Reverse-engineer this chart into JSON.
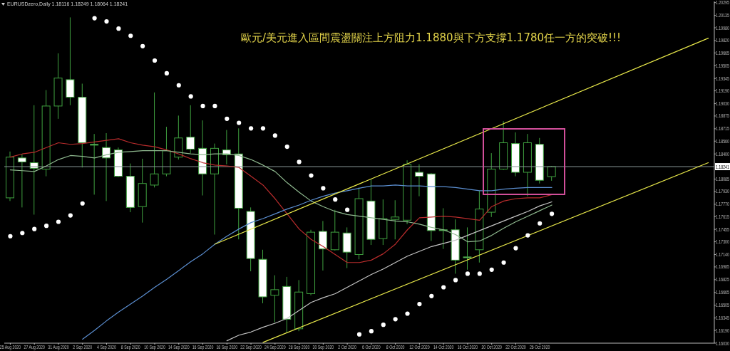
{
  "chart_data": {
    "type": "candlestick",
    "title": "EURUSDzero,Daily 1.18116 1.18249 1.18064 1.18241",
    "annotations": [
      "歐元/美元進入區間震盪關注上方阻力1.1880與下方支撐1.1780任一方的突破!!!"
    ],
    "categories": [
      "25 Aug 2020",
      null,
      "27 Aug 2020",
      null,
      "31 Aug 2020",
      null,
      "2 Sep 2020",
      null,
      "4 Sep 2020",
      null,
      "8 Sep 2020",
      null,
      "10 Sep 2020",
      null,
      "14 Sep 2020",
      null,
      "16 Sep 2020",
      null,
      "18 Sep 2020",
      null,
      "22 Sep 2020",
      null,
      "24 Sep 2020",
      null,
      "28 Sep 2020",
      null,
      "30 Sep 2020",
      null,
      "2 Oct 2020",
      null,
      "6 Oct 2020",
      null,
      "8 Oct 2020",
      null,
      "12 Oct 2020",
      null,
      "14 Oct 2020",
      null,
      "16 Oct 2020",
      null,
      "20 Oct 2020",
      null,
      "22 Oct 2020",
      null,
      "26 Oct 2020",
      null,
      null,
      null,
      null,
      null,
      null,
      null,
      null,
      null,
      null,
      null,
      null,
      null,
      null
    ],
    "ohlc": [
      [
        1.1785,
        1.1843,
        1.1781,
        1.1836
      ],
      [
        1.1835,
        1.184,
        1.1773,
        1.183
      ],
      [
        1.1829,
        1.1901,
        1.1764,
        1.1822
      ],
      [
        1.1821,
        1.192,
        1.1812,
        1.19
      ],
      [
        1.19,
        1.1966,
        1.1884,
        1.1935
      ],
      [
        1.1933,
        1.2011,
        1.1901,
        1.1911
      ],
      [
        1.1911,
        1.1928,
        1.1823,
        1.1854
      ],
      [
        1.1852,
        1.1865,
        1.1789,
        1.1851
      ],
      [
        1.1848,
        1.1866,
        1.1781,
        1.1835
      ],
      [
        1.1845,
        1.1848,
        1.1811,
        1.1812
      ],
      [
        1.1812,
        1.1828,
        1.1767,
        1.1773
      ],
      [
        1.1774,
        1.1834,
        1.1754,
        1.1803
      ],
      [
        1.1801,
        1.1917,
        1.1798,
        1.1815
      ],
      [
        1.1815,
        1.1874,
        1.1812,
        1.1844
      ],
      [
        1.1836,
        1.1888,
        1.1833,
        1.186
      ],
      [
        1.1861,
        1.1901,
        1.1841,
        1.1846
      ],
      [
        1.1847,
        1.1882,
        1.1788,
        1.1815
      ],
      [
        1.1815,
        1.1853,
        1.1739,
        1.1847
      ],
      [
        1.1845,
        1.187,
        1.1827,
        1.1839
      ],
      [
        1.184,
        1.1872,
        1.1733,
        1.1772
      ],
      [
        1.1768,
        1.1773,
        1.1693,
        1.1709
      ],
      [
        1.1708,
        1.172,
        1.1653,
        1.1661
      ],
      [
        1.1663,
        1.1688,
        1.1629,
        1.167
      ],
      [
        1.1674,
        1.1686,
        1.1616,
        1.1633
      ],
      [
        1.1621,
        1.1682,
        1.1618,
        1.1667
      ],
      [
        1.1665,
        1.1745,
        1.1663,
        1.1742
      ],
      [
        1.1743,
        1.1756,
        1.1694,
        1.1721
      ],
      [
        1.172,
        1.177,
        1.1719,
        1.1742
      ],
      [
        1.1741,
        1.1748,
        1.1697,
        1.1717
      ],
      [
        1.1714,
        1.1798,
        1.1708,
        1.1784
      ],
      [
        1.1781,
        1.1808,
        1.1726,
        1.1733
      ],
      [
        1.1734,
        1.1783,
        1.1726,
        1.1759
      ],
      [
        1.1758,
        1.1782,
        1.1733,
        1.1761
      ],
      [
        1.1757,
        1.1832,
        1.1752,
        1.1827
      ],
      [
        1.1817,
        1.1827,
        1.1787,
        1.1812
      ],
      [
        1.1815,
        1.1816,
        1.1731,
        1.1744
      ],
      [
        1.1745,
        1.1772,
        1.1721,
        1.1744
      ],
      [
        1.1745,
        1.1758,
        1.169,
        1.1707
      ],
      [
        1.1711,
        1.1748,
        1.1695,
        1.171
      ],
      [
        1.172,
        1.1794,
        1.1704,
        1.1771
      ],
      [
        1.1767,
        1.1841,
        1.1761,
        1.1821
      ],
      [
        1.1821,
        1.1881,
        1.182,
        1.1854
      ],
      [
        1.1853,
        1.1867,
        1.1812,
        1.1817
      ],
      [
        1.1817,
        1.1865,
        1.1787,
        1.1854
      ],
      [
        1.1852,
        1.186,
        1.1803,
        1.1807
      ],
      [
        1.18116,
        1.18249,
        1.18064,
        1.18241
      ],
      null,
      null,
      null,
      null,
      null,
      null,
      null,
      null,
      null,
      null,
      null,
      null,
      null
    ],
    "color": "#3fa03f",
    "colors": [
      "#000000",
      "#ffffff",
      "#ffffff",
      "#000000",
      "#000000",
      "#ffffff",
      "#ffffff",
      "#ffffff",
      "#ffffff",
      "#ffffff",
      "#ffffff",
      "#000000",
      "#000000",
      "#000000",
      "#000000",
      "#ffffff",
      "#ffffff",
      "#000000",
      "#ffffff",
      "#ffffff",
      "#ffffff",
      "#ffffff",
      "#000000",
      "#ffffff",
      "#000000",
      "#000000",
      "#ffffff",
      "#000000",
      "#ffffff",
      "#000000",
      "#ffffff",
      "#000000",
      "#000000",
      "#000000",
      "#ffffff",
      "#ffffff",
      "#ffffff",
      "#ffffff",
      "#ffffff",
      "#000000",
      "#000000",
      "#000000",
      "#ffffff",
      "#000000",
      "#ffffff",
      "#000000",
      null,
      null,
      null,
      null,
      null,
      null,
      null,
      null,
      null,
      null,
      null,
      null,
      null
    ],
    "series": [
      {
        "type": "line",
        "color": "#b82c2c",
        "values": [
          1.1836,
          1.184,
          1.1842,
          1.1848,
          1.1854,
          1.1852,
          1.1853,
          1.1855,
          1.1857,
          1.1859,
          1.1854,
          1.1851,
          1.1849,
          1.1845,
          1.184,
          1.1834,
          1.1829,
          1.1826,
          1.1825,
          1.1823,
          1.1812,
          1.1801,
          1.1784,
          1.1765,
          1.1746,
          1.1733,
          1.1724,
          1.1714,
          1.1704,
          1.1704,
          1.1707,
          1.1715,
          1.1727,
          1.1745,
          1.176,
          1.1761,
          1.1762,
          1.1761,
          1.1759,
          1.1757,
          1.1774,
          1.1781,
          1.1784,
          1.1785,
          1.1785,
          1.1789,
          null,
          null,
          null,
          null,
          null,
          null,
          null,
          null,
          null,
          null,
          null,
          null,
          null
        ]
      },
      {
        "type": "line",
        "color": "#8fb98f",
        "values": [
          1.182,
          1.1819,
          1.1818,
          1.1825,
          1.1833,
          1.1838,
          1.1837,
          1.1835,
          1.1839,
          1.1842,
          1.1843,
          1.1844,
          1.1844,
          1.1844,
          1.1842,
          1.184,
          1.1839,
          1.184,
          1.184,
          1.1838,
          1.1833,
          1.1826,
          1.1818,
          1.1804,
          1.1792,
          1.1781,
          1.1774,
          1.1768,
          1.1764,
          1.1762,
          1.176,
          1.1758,
          1.1756,
          1.1755,
          1.1752,
          1.1748,
          1.1745,
          1.1739,
          1.173,
          1.1731,
          1.1738,
          1.1747,
          1.1755,
          1.1762,
          1.1769,
          1.1776,
          null,
          null,
          null,
          null,
          null,
          null,
          null,
          null,
          null,
          null,
          null,
          null,
          null
        ]
      },
      {
        "type": "line",
        "color": "#5b8ed0",
        "values": [
          null,
          null,
          null,
          null,
          null,
          null,
          1.1608,
          1.1619,
          1.1631,
          1.1642,
          1.1652,
          1.1662,
          1.1673,
          1.1683,
          1.1694,
          1.1705,
          1.1715,
          1.1727,
          1.1737,
          1.1746,
          1.1754,
          1.1759,
          1.1765,
          1.1771,
          1.1776,
          1.1782,
          1.1787,
          1.1791,
          1.1794,
          1.1797,
          1.18,
          1.18,
          1.1801,
          1.18,
          1.18,
          1.1799,
          1.1799,
          1.1798,
          1.1796,
          1.1794,
          1.1794,
          1.1796,
          1.1797,
          1.1798,
          1.1798,
          1.1798,
          null,
          null,
          null,
          null,
          null,
          null,
          null,
          null,
          null,
          null,
          null,
          null,
          null
        ]
      },
      {
        "type": "line",
        "color": "#c4c4c4",
        "values": [
          null,
          null,
          null,
          null,
          null,
          null,
          null,
          null,
          null,
          null,
          null,
          null,
          null,
          null,
          null,
          null,
          null,
          null,
          1.1606,
          1.1613,
          1.1617,
          1.1623,
          1.1628,
          1.1634,
          1.1644,
          1.1654,
          1.166,
          1.1665,
          1.1673,
          1.1681,
          1.1689,
          1.1696,
          1.1704,
          1.1712,
          1.1718,
          1.1724,
          1.1728,
          1.1732,
          1.1738,
          1.1744,
          1.175,
          1.1756,
          1.1762,
          1.1768,
          1.1775,
          1.178,
          null,
          null,
          null,
          null,
          null,
          null,
          null,
          null,
          null,
          null,
          null,
          null,
          null
        ]
      },
      {
        "type": "line",
        "color": "#e8e84a",
        "values": [
          null,
          null,
          null,
          null,
          null,
          null,
          null,
          null,
          null,
          null,
          null,
          null,
          null,
          null,
          null,
          null,
          null,
          1.1727,
          null,
          null,
          null,
          null,
          null,
          null,
          null,
          null,
          null,
          null,
          null,
          null,
          null,
          null,
          null,
          null,
          null,
          null,
          null,
          null,
          null,
          null,
          null,
          null,
          null,
          null,
          null,
          null,
          null,
          null,
          null,
          null,
          null,
          null,
          null,
          null,
          null,
          null,
          null,
          null,
          1.1985
        ]
      },
      {
        "type": "line",
        "color": "#e8e84a",
        "values": [
          null,
          null,
          null,
          null,
          null,
          null,
          null,
          null,
          null,
          null,
          null,
          null,
          null,
          null,
          null,
          null,
          null,
          null,
          null,
          null,
          null,
          1.1604,
          null,
          null,
          null,
          null,
          null,
          null,
          null,
          null,
          null,
          null,
          null,
          null,
          null,
          null,
          null,
          null,
          null,
          null,
          null,
          null,
          null,
          null,
          null,
          null,
          null,
          null,
          null,
          null,
          null,
          null,
          null,
          null,
          null,
          null,
          null,
          null,
          1.1829
        ]
      },
      {
        "type": "scatter",
        "color": "#ffffff",
        "marker": "circle",
        "values": [
          1.1737,
          1.1741,
          1.1746,
          1.175,
          1.1755,
          1.1763,
          1.1778,
          1.201,
          1.2006,
          1.1997,
          1.1988,
          1.1975,
          1.1957,
          1.1941,
          1.1926,
          1.1912,
          1.19,
          1.19,
          1.1884,
          1.1879,
          1.1872,
          1.1872,
          1.1863,
          1.1849,
          1.183,
          1.1813,
          1.1797,
          1.1783,
          1.177,
          1.1614,
          1.1618,
          1.1626,
          1.1633,
          1.164,
          1.1652,
          1.1662,
          1.1673,
          1.1682,
          1.169,
          1.169,
          1.1695,
          1.1704,
          1.1722,
          1.1738,
          1.1753,
          1.1765,
          null,
          null,
          null,
          null,
          null,
          null,
          null,
          null,
          null,
          null,
          null,
          null,
          null
        ]
      }
    ],
    "ylim": [
      1.1603,
      1.2031
    ],
    "yticks": [
      1.20295,
      1.20135,
      {
        "value": 1.1998,
        "label": "1.19980"
      },
      {
        "value": 1.1982,
        "label": "1.19820"
      },
      1.19665,
      1.19505,
      1.19345,
      {
        "value": 1.1919,
        "label": "1.19190"
      },
      {
        "value": 1.1903,
        "label": "1.19030"
      },
      1.18875,
      1.18715,
      {
        "value": 1.1856,
        "label": "1.18560"
      },
      {
        "value": 1.184,
        "label": "1.18400"
      },
      1.18085,
      {
        "value": 1.1793,
        "label": "1.17930"
      },
      {
        "value": 1.1777,
        "label": "1.17770"
      },
      1.17615,
      1.17455,
      {
        "value": 1.173,
        "label": "1.17300"
      },
      {
        "value": 1.1714,
        "label": "1.17140"
      },
      1.16985,
      1.16825,
      1.16665,
      1.16505,
      1.16345,
      {
        "value": 1.1619,
        "label": "1.16190"
      },
      {
        "value": 1.1603,
        "label": "1.16030"
      }
    ],
    "ref_lines": [
      {
        "axis": "y",
        "value": 1.18241,
        "label": "1.18241",
        "color": "#8a9696"
      }
    ]
  }
}
